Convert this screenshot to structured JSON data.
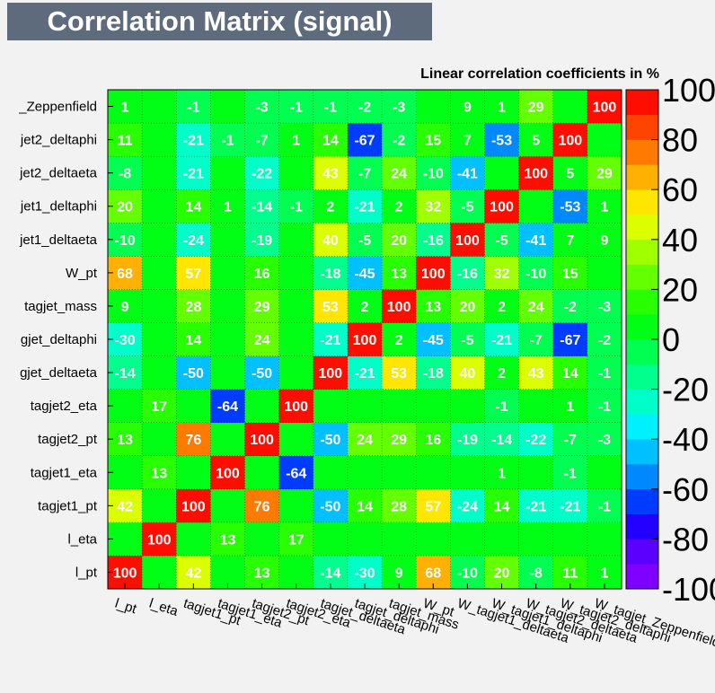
{
  "title": "Correlation Matrix (signal)",
  "subtitle": "Linear correlation coefficients in %",
  "chart_data": {
    "type": "heatmap",
    "variables": [
      "l_pt",
      "l_eta",
      "tagjet1_pt",
      "tagjet1_eta",
      "tagjet2_pt",
      "tagjet2_eta",
      "tagjet_deltaeta",
      "tagjet_deltaphi",
      "tagjet_mass",
      "W_pt",
      "W_tagjet1_deltaeta",
      "W_tagjet1_deltaphi",
      "W_tagjet2_deltaeta",
      "W_tagjet2_deltaphi",
      "W_tagjet_Zeppenfield"
    ],
    "x_tick_labels": [
      "l_pt",
      "l_eta",
      "tagjet1_pt",
      "tagjet1_eta",
      "tagjet2_pt",
      "tagjet2_eta",
      "tagjet_deltaeta",
      "tagjet_deltaphi",
      "tagjet_mass",
      "W_pt",
      "W_tagjet1_deltaeta",
      "W_tagjet1_deltaphi",
      "W_tagjet2_deltaeta",
      "W_tagjet2_deltaphi",
      "W_tagjet_Zeppenfield"
    ],
    "y_tick_labels": [
      "l_pt",
      "l_eta",
      "tagjet1_pt",
      "tagjet1_eta",
      "tagjet2_pt",
      "tagjet2_eta",
      "gjet_deltaeta",
      "gjet_deltaphi",
      "tagjet_mass",
      "W_pt",
      "jet1_deltaeta",
      "jet1_deltaphi",
      "jet2_deltaeta",
      "jet2_deltaphi",
      "_Zeppenfield"
    ],
    "matrix": [
      [
        100,
        0,
        42,
        0,
        13,
        0,
        -14,
        -30,
        9,
        68,
        -10,
        20,
        -8,
        11,
        1
      ],
      [
        0,
        100,
        0,
        13,
        0,
        17,
        0,
        0,
        0,
        0,
        0,
        0,
        0,
        0,
        0
      ],
      [
        42,
        0,
        100,
        0,
        76,
        0,
        -50,
        14,
        28,
        57,
        -24,
        14,
        -21,
        -21,
        -1
      ],
      [
        0,
        13,
        0,
        100,
        0,
        -64,
        0,
        0,
        0,
        0,
        0,
        1,
        0,
        -1,
        0
      ],
      [
        13,
        0,
        76,
        0,
        100,
        0,
        -50,
        24,
        29,
        16,
        -19,
        -14,
        -22,
        -7,
        -3
      ],
      [
        0,
        17,
        0,
        -64,
        0,
        100,
        0,
        0,
        0,
        0,
        0,
        -1,
        0,
        1,
        -1
      ],
      [
        -14,
        0,
        -50,
        0,
        -50,
        0,
        100,
        -21,
        53,
        -18,
        40,
        2,
        43,
        14,
        -1
      ],
      [
        -30,
        0,
        14,
        0,
        24,
        0,
        -21,
        100,
        2,
        -45,
        -5,
        -21,
        -7,
        -67,
        -2
      ],
      [
        9,
        0,
        28,
        0,
        29,
        0,
        53,
        2,
        100,
        13,
        20,
        2,
        24,
        -2,
        -3
      ],
      [
        68,
        0,
        57,
        0,
        16,
        0,
        -18,
        -45,
        13,
        100,
        -16,
        32,
        -10,
        15,
        0
      ],
      [
        -10,
        0,
        -24,
        0,
        -19,
        0,
        40,
        -5,
        20,
        -16,
        100,
        -5,
        -41,
        7,
        9
      ],
      [
        20,
        0,
        14,
        1,
        -14,
        -1,
        2,
        -21,
        2,
        32,
        -5,
        100,
        0,
        -53,
        1
      ],
      [
        -8,
        0,
        -21,
        0,
        -22,
        0,
        43,
        -7,
        24,
        -10,
        -41,
        0,
        100,
        5,
        29
      ],
      [
        11,
        0,
        -21,
        -1,
        -7,
        1,
        14,
        -67,
        -2,
        15,
        7,
        -53,
        5,
        100,
        0
      ],
      [
        1,
        0,
        -1,
        0,
        -3,
        -1,
        -1,
        -2,
        -3,
        0,
        9,
        1,
        29,
        0,
        100
      ]
    ],
    "zlim": [
      -100,
      100
    ],
    "colorbar_ticks": [
      "100",
      "80",
      "60",
      "40",
      "20",
      "0",
      "-20",
      "-40",
      "-60",
      "-80",
      "-100"
    ],
    "palette": [
      "#7f00ff",
      "#5a00ff",
      "#2200ff",
      "#003cff",
      "#0088ff",
      "#00c0ff",
      "#00f0ff",
      "#00ffc8",
      "#00ff8c",
      "#00ff50",
      "#00ff14",
      "#28ff00",
      "#64ff00",
      "#a0ff00",
      "#dcff00",
      "#ffe600",
      "#ffb000",
      "#ff7a00",
      "#ff4400",
      "#ff0e00"
    ]
  }
}
